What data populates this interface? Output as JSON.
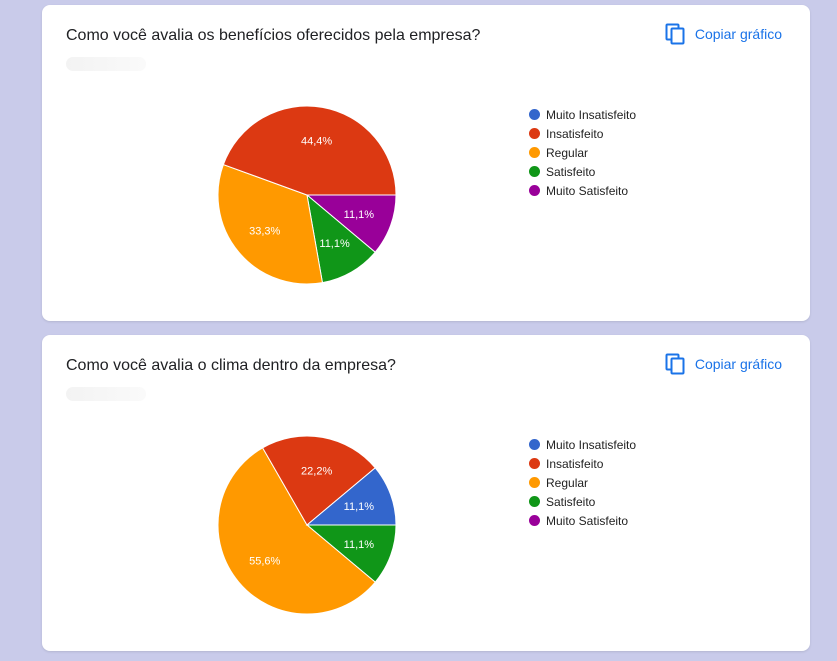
{
  "copy_label": "Copiar gráfico",
  "icons": {
    "copy": "copy-icon"
  },
  "cards": [
    {
      "title": "Como você avalia os benefícios oferecidos pela empresa?",
      "chart_data": {
        "type": "pie",
        "title": "Como você avalia os benefícios oferecidos pela empresa?",
        "categories": [
          "Muito Insatisfeito",
          "Insatisfeito",
          "Regular",
          "Satisfeito",
          "Muito Satisfeito"
        ],
        "values": [
          0,
          44.4,
          33.3,
          11.1,
          11.1
        ],
        "labels": [
          "",
          "44,4%",
          "33,3%",
          "11,1%",
          "11,1%"
        ],
        "colors": [
          "#3366cc",
          "#dc3912",
          "#ff9900",
          "#109618",
          "#990099"
        ],
        "legend": "right"
      }
    },
    {
      "title": "Como você avalia o clima dentro da empresa?",
      "chart_data": {
        "type": "pie",
        "title": "Como você avalia o clima dentro da empresa?",
        "categories": [
          "Muito Insatisfeito",
          "Insatisfeito",
          "Regular",
          "Satisfeito",
          "Muito Satisfeito"
        ],
        "values": [
          11.1,
          22.2,
          55.6,
          11.1,
          0
        ],
        "labels": [
          "11,1%",
          "22,2%",
          "55,6%",
          "11,1%",
          ""
        ],
        "colors": [
          "#3366cc",
          "#dc3912",
          "#ff9900",
          "#109618",
          "#990099"
        ],
        "legend": "right"
      }
    }
  ]
}
